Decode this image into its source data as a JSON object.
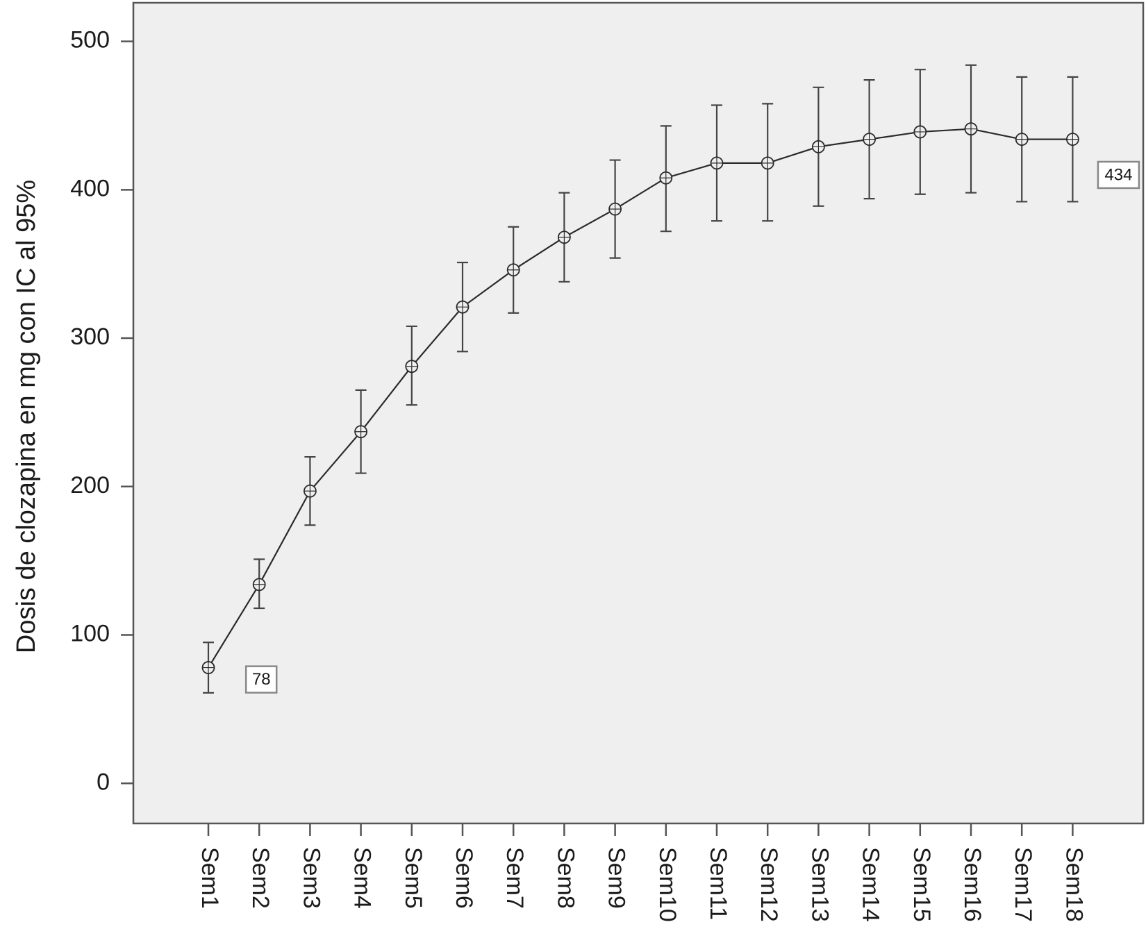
{
  "chart_data": {
    "type": "line",
    "title": "",
    "xlabel": "",
    "ylabel": "Dosis de clozapina en mg con IC al 95%",
    "ylim": [
      -27,
      526
    ],
    "yticks": [
      0,
      100,
      200,
      300,
      400,
      500
    ],
    "grid": false,
    "legend": "none",
    "colors": {
      "background": "#efefef",
      "line": "#2a2a2a",
      "errorbar": "#444444"
    },
    "categories": [
      "Sem1",
      "Sem2",
      "Sem3",
      "Sem4",
      "Sem5",
      "Sem6",
      "Sem7",
      "Sem8",
      "Sem9",
      "Sem10",
      "Sem11",
      "Sem12",
      "Sem13",
      "Sem14",
      "Sem15",
      "Sem16",
      "Sem17",
      "Sem18"
    ],
    "series": [
      {
        "values": [
          78,
          134,
          197,
          237,
          281,
          321,
          346,
          368,
          387,
          408,
          418,
          418,
          429,
          434,
          439,
          441,
          434,
          434
        ],
        "ci_low": [
          61,
          118,
          174,
          209,
          255,
          291,
          317,
          338,
          354,
          372,
          379,
          379,
          389,
          394,
          397,
          398,
          392,
          392
        ],
        "ci_high": [
          95,
          151,
          220,
          265,
          308,
          351,
          375,
          398,
          420,
          443,
          457,
          458,
          469,
          474,
          481,
          484,
          476,
          476
        ]
      }
    ],
    "annotations": [
      {
        "text": "78",
        "category": "Sem2",
        "y": 70
      },
      {
        "text": "434",
        "category": "Sem18",
        "y": 410
      }
    ]
  }
}
